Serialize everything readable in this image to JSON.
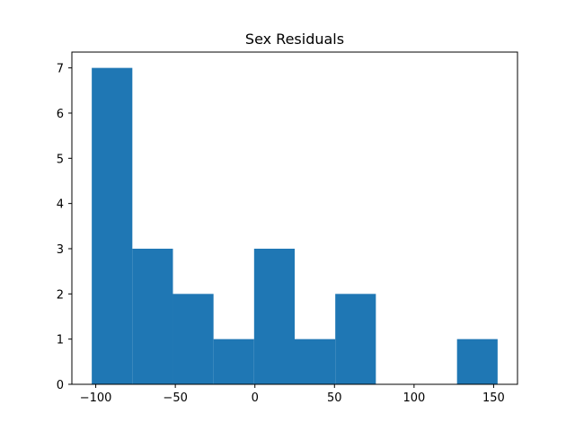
{
  "chart_data": {
    "type": "bar",
    "title": "Sex Residuals",
    "xlabel": "",
    "ylabel": "",
    "bin_edges": [
      -102.5,
      -77.0,
      -51.5,
      -26.0,
      -0.5,
      25.0,
      50.5,
      76.0,
      101.5,
      127.0,
      152.5
    ],
    "values": [
      7,
      3,
      2,
      1,
      3,
      1,
      2,
      0,
      0,
      1
    ],
    "bar_color": "#1f77b4",
    "xlim": [
      -115,
      165
    ],
    "ylim": [
      0,
      7.35
    ],
    "x_ticks": [
      -100,
      -50,
      0,
      50,
      100,
      150
    ],
    "x_tick_labels": [
      "−100",
      "−50",
      "0",
      "50",
      "100",
      "150"
    ],
    "y_ticks": [
      0,
      1,
      2,
      3,
      4,
      5,
      6,
      7
    ],
    "y_tick_labels": [
      "0",
      "1",
      "2",
      "3",
      "4",
      "5",
      "6",
      "7"
    ],
    "grid": false,
    "legend": "none"
  }
}
